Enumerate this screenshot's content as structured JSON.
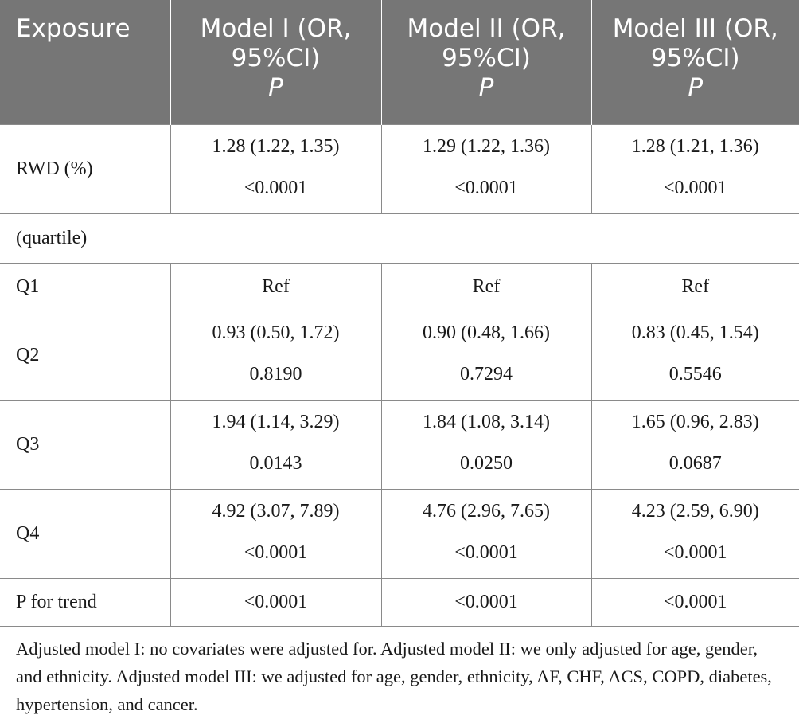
{
  "table": {
    "headers": [
      {
        "name": "Exposure"
      },
      {
        "name": "Model I (OR, 95%CI)",
        "p": "P"
      },
      {
        "name": "Model II (OR, 95%CI)",
        "p": "P"
      },
      {
        "name": "Model III (OR, 95%CI)",
        "p": "P"
      }
    ],
    "rows": [
      {
        "label": "RWD (%)",
        "cells": [
          {
            "or": "1.28 (1.22, 1.35)",
            "p": "<0.0001"
          },
          {
            "or": "1.29 (1.22, 1.36)",
            "p": "<0.0001"
          },
          {
            "or": "1.28 (1.21, 1.36)",
            "p": "<0.0001"
          }
        ]
      },
      {
        "label": "(quartile)"
      },
      {
        "label": "Q1",
        "cells": [
          {
            "or": "Ref"
          },
          {
            "or": "Ref"
          },
          {
            "or": "Ref"
          }
        ]
      },
      {
        "label": "Q2",
        "cells": [
          {
            "or": "0.93 (0.50, 1.72)",
            "p": "0.8190"
          },
          {
            "or": "0.90 (0.48, 1.66)",
            "p": "0.7294"
          },
          {
            "or": "0.83 (0.45, 1.54)",
            "p": "0.5546"
          }
        ]
      },
      {
        "label": "Q3",
        "cells": [
          {
            "or": "1.94 (1.14, 3.29)",
            "p": "0.0143"
          },
          {
            "or": "1.84 (1.08, 3.14)",
            "p": "0.0250"
          },
          {
            "or": "1.65 (0.96, 2.83)",
            "p": "0.0687"
          }
        ]
      },
      {
        "label": "Q4",
        "cells": [
          {
            "or": "4.92 (3.07, 7.89)",
            "p": "<0.0001"
          },
          {
            "or": "4.76 (2.96, 7.65)",
            "p": "<0.0001"
          },
          {
            "or": "4.23 (2.59, 6.90)",
            "p": "<0.0001"
          }
        ]
      },
      {
        "label": "P for trend",
        "cells": [
          {
            "or": "<0.0001"
          },
          {
            "or": "<0.0001"
          },
          {
            "or": "<0.0001"
          }
        ]
      }
    ]
  },
  "footnote": "Adjusted model I: no covariates were adjusted for. Adjusted model II: we only adjusted for age, gender, and ethnicity. Adjusted model III: we adjusted for age, gender, ethnicity, AF, CHF, ACS, COPD, diabetes, hypertension, and cancer."
}
